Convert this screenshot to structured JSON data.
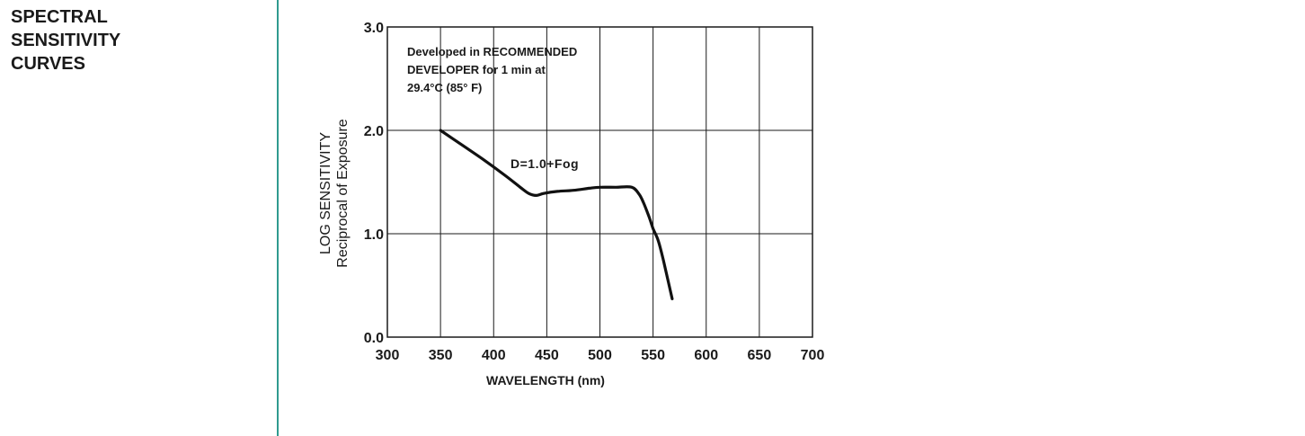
{
  "section": {
    "title_lines": [
      "SPECTRAL",
      "SENSITIVITY",
      "CURVES"
    ],
    "divider_color": "#2f9a8f"
  },
  "chart_data": {
    "type": "line",
    "title": "",
    "xlabel": "WAVELENGTH (nm)",
    "ylabel_lines": [
      "LOG SENSITIVITY",
      "Reciprocal of Exposure"
    ],
    "xlim": [
      300,
      700
    ],
    "ylim": [
      0.0,
      3.0
    ],
    "x_ticks": [
      300,
      350,
      400,
      450,
      500,
      550,
      600,
      650,
      700
    ],
    "y_ticks": [
      0.0,
      1.0,
      2.0,
      3.0
    ],
    "x_tick_labels": [
      "300",
      "350",
      "400",
      "450",
      "500",
      "550",
      "600",
      "650",
      "700"
    ],
    "y_tick_labels": [
      "0.0",
      "1.0",
      "2.0",
      "3.0"
    ],
    "grid": true,
    "annotation_lines": [
      "Developed in RECOMMENDED",
      "DEVELOPER for 1 min at",
      "29.4°C (85° F)"
    ],
    "curve_label": "D=1.0+Fog",
    "series": [
      {
        "name": "D=1.0+Fog",
        "x": [
          350,
          370,
          390,
          410,
          425,
          433,
          440,
          447,
          460,
          475,
          490,
          500,
          515,
          530,
          537,
          541,
          546,
          550,
          555,
          560,
          568
        ],
        "y": [
          2.0,
          1.86,
          1.72,
          1.57,
          1.45,
          1.39,
          1.37,
          1.39,
          1.41,
          1.42,
          1.44,
          1.45,
          1.45,
          1.45,
          1.38,
          1.3,
          1.17,
          1.05,
          0.93,
          0.73,
          0.37
        ]
      }
    ]
  }
}
